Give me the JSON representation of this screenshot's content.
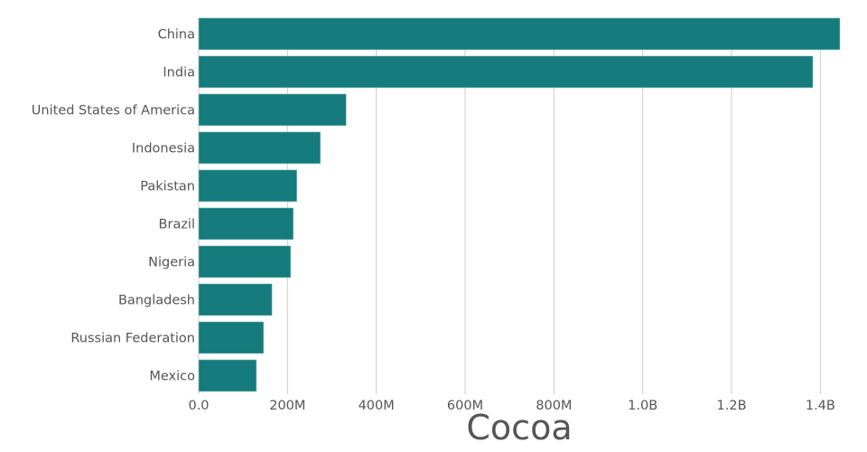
{
  "chart_data": {
    "type": "bar",
    "orientation": "horizontal",
    "title": "Cocoa",
    "categories": [
      "China",
      "India",
      "United States of America",
      "Indonesia",
      "Pakistan",
      "Brazil",
      "Nigeria",
      "Bangladesh",
      "Russian Federation",
      "Mexico"
    ],
    "values": [
      1444000000,
      1383000000,
      332000000,
      274000000,
      221000000,
      213000000,
      207000000,
      165000000,
      146000000,
      130000000
    ],
    "xlim": [
      0,
      1444000000
    ],
    "xticks": [
      0,
      200000000,
      400000000,
      600000000,
      800000000,
      1000000000,
      1200000000,
      1400000000
    ],
    "xtick_labels": [
      "0.0",
      "200M",
      "400M",
      "600M",
      "800M",
      "1.0B",
      "1.2B",
      "1.4B"
    ],
    "grid": "vertical",
    "bar_color": "#157B7D",
    "grid_color": "#cccccc"
  }
}
